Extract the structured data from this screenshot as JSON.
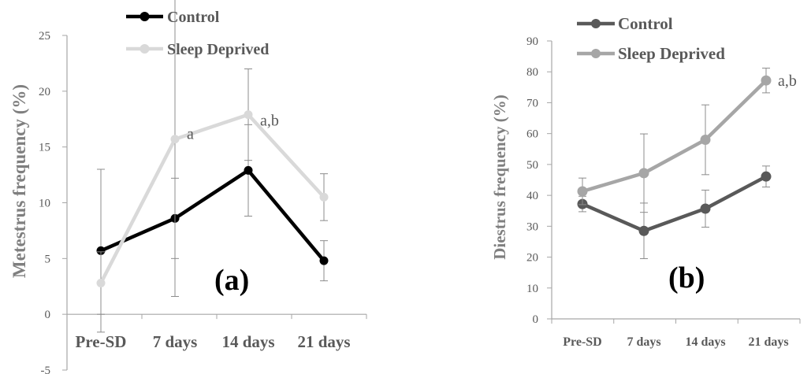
{
  "chart_data": [
    {
      "type": "line",
      "panel_label": "(a)",
      "ylabel": "Metestrus frequency (%)",
      "xlabel": "",
      "categories": [
        "Pre-SD",
        "7 days",
        "14 days",
        "21 days"
      ],
      "ylim": [
        -5,
        25
      ],
      "yticks": [
        "-5",
        "0",
        "5",
        "10",
        "15",
        "20",
        "25"
      ],
      "series": [
        {
          "name": "Control",
          "values": [
            5.7,
            8.6,
            12.9,
            4.8
          ],
          "errors": [
            7.3,
            3.6,
            4.1,
            1.8
          ],
          "color": "#000000"
        },
        {
          "name": "Sleep Deprived",
          "values": [
            2.8,
            15.7,
            17.9,
            10.5
          ],
          "errors": [
            2.8,
            14.1,
            4.1,
            2.1
          ],
          "color": "#d9d9d9"
        }
      ],
      "annotations": [
        {
          "text": "a",
          "x": "7 days",
          "y": 16.2
        },
        {
          "text": "a,b",
          "x": "14 days",
          "y": 17.4
        }
      ],
      "legend": "top-left"
    },
    {
      "type": "line",
      "panel_label": "(b)",
      "ylabel": "Diestrus frequency (%)",
      "xlabel": "",
      "categories": [
        "Pre-SD",
        "7 days",
        "14 days",
        "21 days"
      ],
      "ylim": [
        0,
        90
      ],
      "yticks": [
        "0",
        "10",
        "20",
        "30",
        "40",
        "50",
        "60",
        "70",
        "80",
        "90"
      ],
      "series": [
        {
          "name": "Control",
          "values": [
            37.2,
            28.5,
            35.7,
            46.1
          ],
          "errors": [
            2.5,
            9.0,
            6.0,
            3.4
          ],
          "color": "#595959"
        },
        {
          "name": "Sleep Deprived",
          "values": [
            41.3,
            47.2,
            58.0,
            77.2
          ],
          "errors": [
            4.3,
            12.7,
            11.3,
            4.0
          ],
          "color": "#a6a6a6"
        }
      ],
      "annotations": [
        {
          "text": "a,b",
          "x": "21 days",
          "y": 77.2
        }
      ],
      "legend": "top-left"
    }
  ]
}
